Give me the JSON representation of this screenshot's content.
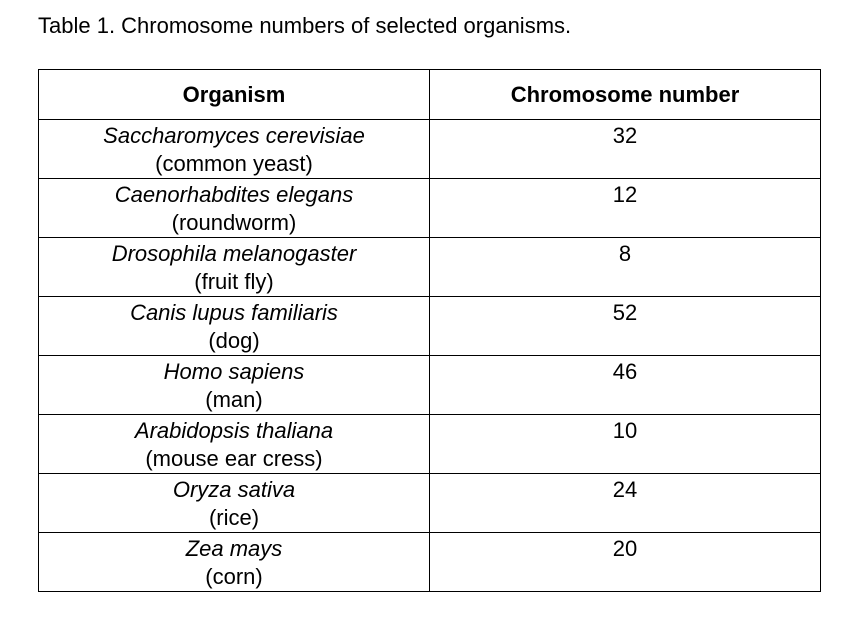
{
  "caption": "Table 1. Chromosome numbers of selected organisms.",
  "table": {
    "headers": [
      "Organism",
      "Chromosome number"
    ],
    "rows": [
      {
        "scientific": "Saccharomyces cerevisiae",
        "common": "(common yeast)",
        "number": "32"
      },
      {
        "scientific": "Caenorhabdites elegans",
        "common": "(roundworm)",
        "number": "12"
      },
      {
        "scientific": "Drosophila melanogaster",
        "common": "(fruit fly)",
        "number": "8"
      },
      {
        "scientific": "Canis lupus familiaris",
        "common": "(dog)",
        "number": "52"
      },
      {
        "scientific": "Homo sapiens",
        "common": "(man)",
        "number": "46"
      },
      {
        "scientific": "Arabidopsis thaliana",
        "common": "(mouse ear cress)",
        "number": "10"
      },
      {
        "scientific": "Oryza sativa",
        "common": "(rice)",
        "number": "24"
      },
      {
        "scientific": "Zea mays",
        "common": "(corn)",
        "number": "20"
      }
    ]
  }
}
